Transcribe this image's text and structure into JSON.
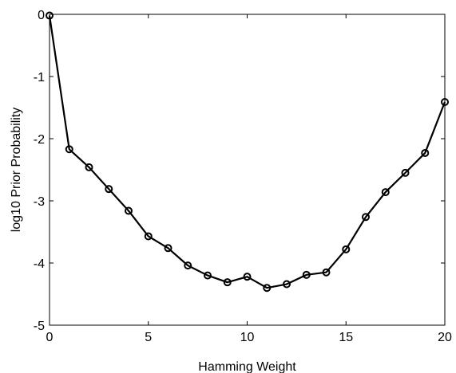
{
  "chart_data": {
    "type": "line",
    "title": "",
    "xlabel": "Hamming Weight",
    "ylabel": "log10 Prior Probability",
    "xlim": [
      0,
      20
    ],
    "ylim": [
      -5,
      0
    ],
    "xticks": [
      0,
      5,
      10,
      15,
      20
    ],
    "yticks": [
      -5,
      -4,
      -3,
      -2,
      -1,
      0
    ],
    "xtick_labels": [
      "0",
      "5",
      "10",
      "15",
      "20"
    ],
    "ytick_labels": [
      "-5",
      "-4",
      "-3",
      "-2",
      "-1",
      "0"
    ],
    "grid": false,
    "legend": "none",
    "colors": {
      "line": "#000000",
      "axes": "#000000",
      "background": "#ffffff"
    },
    "series": [
      {
        "marker": "circle",
        "x": [
          0,
          1,
          2,
          3,
          4,
          5,
          6,
          7,
          8,
          9,
          10,
          11,
          12,
          13,
          14,
          15,
          16,
          17,
          18,
          19,
          20
        ],
        "y": [
          -0.02,
          -2.17,
          -2.46,
          -2.81,
          -3.16,
          -3.57,
          -3.76,
          -4.04,
          -4.2,
          -4.31,
          -4.22,
          -4.4,
          -4.34,
          -4.19,
          -4.15,
          -3.78,
          -3.26,
          -2.86,
          -2.55,
          -2.23,
          -1.41
        ]
      }
    ]
  }
}
